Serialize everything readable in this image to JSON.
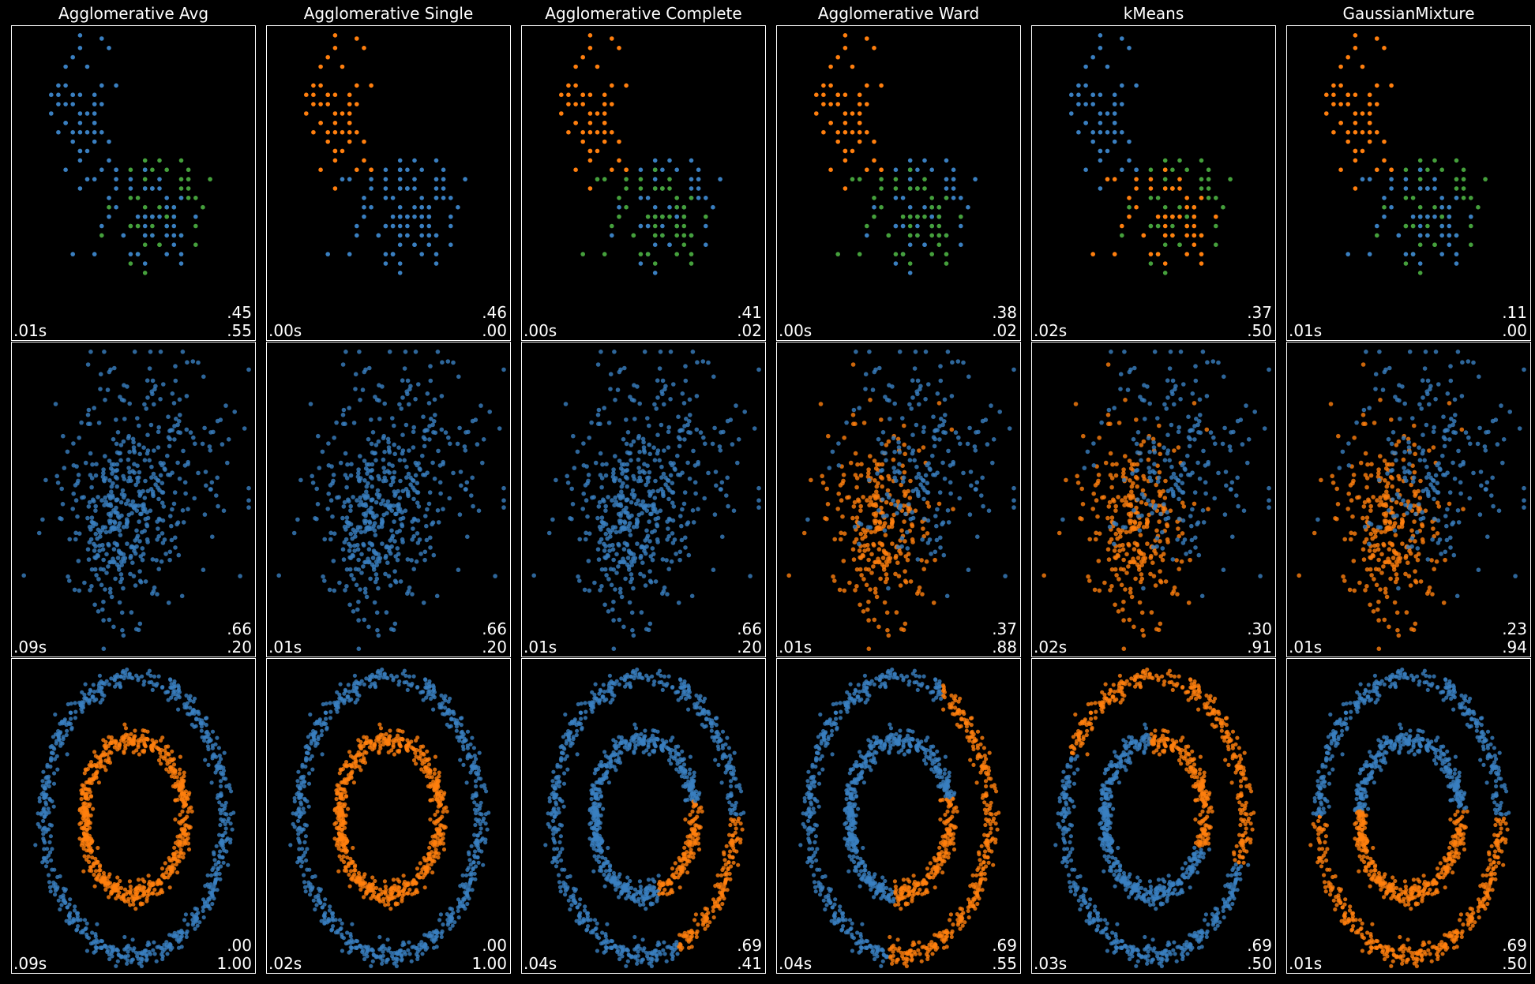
{
  "figure": {
    "background": "#000000",
    "frame_color": "#ffffff"
  },
  "palette": {
    "blue": "#3a7fc0",
    "orange": "#ff7f0e",
    "green": "#45a03c"
  },
  "columns": [
    "Agglomerative Avg",
    "Agglomerative Single",
    "Agglomerative Complete",
    "Agglomerative Ward",
    "kMeans",
    "GaussianMixture"
  ],
  "chart_data": [
    {
      "type": "scatter",
      "dataset": "iris",
      "x_range": [
        0,
        1
      ],
      "y_range": [
        0,
        1
      ],
      "panels": [
        {
          "title": "Agglomerative Avg",
          "metric1": ".45",
          "metric2": ".55",
          "time": ".01s",
          "labels": [
            "blue",
            "green",
            "blue"
          ]
        },
        {
          "title": "Agglomerative Single",
          "metric1": ".46",
          "metric2": ".00",
          "time": ".00s",
          "labels": [
            "orange",
            "blue",
            "blue"
          ]
        },
        {
          "title": "Agglomerative Complete",
          "metric1": ".41",
          "metric2": ".02",
          "time": ".00s",
          "labels": [
            "orange",
            "blue",
            "green"
          ]
        },
        {
          "title": "Agglomerative Ward",
          "metric1": ".38",
          "metric2": ".02",
          "time": ".00s",
          "labels": [
            "orange",
            "blue",
            "green"
          ]
        },
        {
          "title": "kMeans",
          "metric1": ".37",
          "metric2": ".50",
          "time": ".02s",
          "labels": [
            "blue",
            "green",
            "orange"
          ]
        },
        {
          "title": "GaussianMixture",
          "metric1": ".11",
          "metric2": ".00",
          "time": ".01s",
          "labels": [
            "orange",
            "green",
            "blue"
          ]
        }
      ]
    },
    {
      "type": "scatter",
      "dataset": "two overlapping gaussian blobs",
      "x_range": [
        0,
        1
      ],
      "y_range": [
        0,
        1
      ],
      "panels": [
        {
          "title": "Agglomerative Avg",
          "metric1": ".66",
          "metric2": ".20",
          "time": ".09s",
          "labels": [
            "blue",
            "blue"
          ]
        },
        {
          "title": "Agglomerative Single",
          "metric1": ".66",
          "metric2": ".20",
          "time": ".01s",
          "labels": [
            "blue",
            "blue"
          ]
        },
        {
          "title": "Agglomerative Complete",
          "metric1": ".66",
          "metric2": ".20",
          "time": ".01s",
          "labels": [
            "blue",
            "blue"
          ]
        },
        {
          "title": "Agglomerative Ward",
          "metric1": ".37",
          "metric2": ".88",
          "time": ".01s",
          "labels": [
            "orange",
            "blue"
          ]
        },
        {
          "title": "kMeans",
          "metric1": ".30",
          "metric2": ".91",
          "time": ".02s",
          "labels": [
            "orange",
            "blue"
          ]
        },
        {
          "title": "GaussianMixture",
          "metric1": ".23",
          "metric2": ".94",
          "time": ".01s",
          "labels": [
            "orange",
            "blue"
          ]
        }
      ]
    },
    {
      "type": "scatter",
      "dataset": "concentric circles",
      "x_range": [
        0,
        1
      ],
      "y_range": [
        0,
        1
      ],
      "panels": [
        {
          "title": "Agglomerative Avg",
          "metric1": ".00",
          "metric2": "1.00",
          "time": ".09s",
          "mode": "rings",
          "outer": "blue",
          "inner": "orange"
        },
        {
          "title": "Agglomerative Single",
          "metric1": ".00",
          "metric2": "1.00",
          "time": ".02s",
          "mode": "rings",
          "outer": "blue",
          "inner": "orange"
        },
        {
          "title": "Agglomerative Complete",
          "metric1": ".69",
          "metric2": ".41",
          "time": ".04s",
          "mode": "complete"
        },
        {
          "title": "Agglomerative Ward",
          "metric1": ".69",
          "metric2": ".55",
          "time": ".04s",
          "mode": "ward"
        },
        {
          "title": "kMeans",
          "metric1": ".69",
          "metric2": ".50",
          "time": ".03s",
          "mode": "kmeans"
        },
        {
          "title": "GaussianMixture",
          "metric1": ".69",
          "metric2": ".50",
          "time": ".01s",
          "mode": "gmm"
        }
      ]
    }
  ]
}
